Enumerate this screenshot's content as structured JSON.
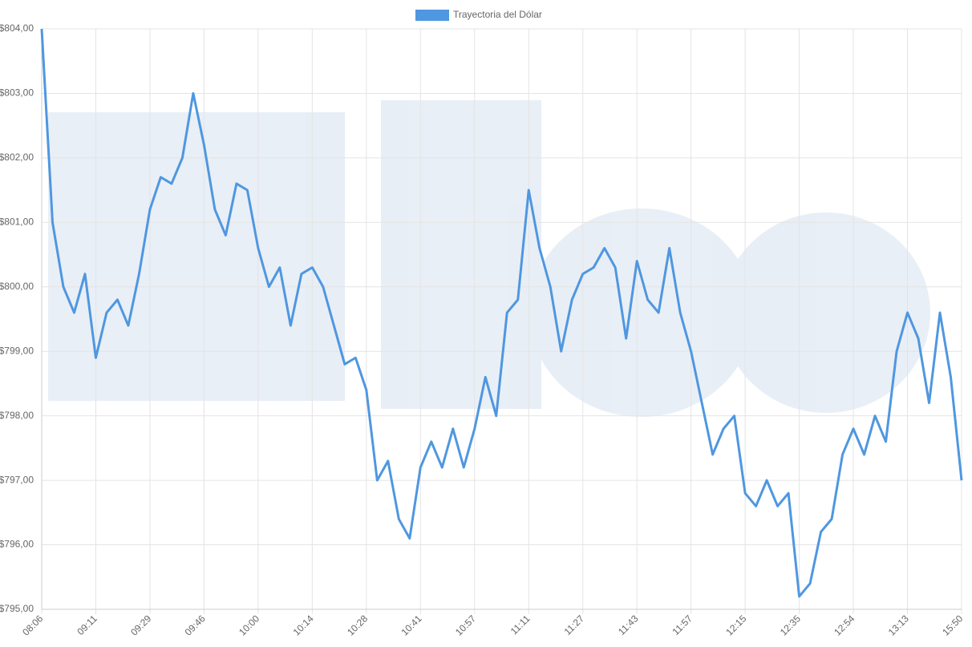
{
  "chart_data": {
    "type": "line",
    "legend": "top",
    "grid": true,
    "categories": [
      "08:06",
      null,
      null,
      null,
      null,
      "09:11",
      null,
      null,
      null,
      null,
      "09:29",
      null,
      null,
      null,
      null,
      "09:46",
      null,
      null,
      null,
      null,
      "10:00",
      null,
      null,
      null,
      null,
      "10:14",
      null,
      null,
      null,
      null,
      "10:28",
      null,
      null,
      null,
      null,
      "10:41",
      null,
      null,
      null,
      null,
      "10:57",
      null,
      null,
      null,
      null,
      "11:11",
      null,
      null,
      null,
      null,
      "11:27",
      null,
      null,
      null,
      null,
      "11:43",
      null,
      null,
      null,
      null,
      "11:57",
      null,
      null,
      null,
      null,
      "12:15",
      null,
      null,
      null,
      null,
      "12:35",
      null,
      null,
      null,
      null,
      "12:54",
      null,
      null,
      null,
      null,
      "13:13",
      null,
      null,
      null,
      null,
      "15:50"
    ],
    "series": [
      {
        "name": "Trayectoria del Dólar",
        "color": "#4f97e0",
        "values": [
          804.0,
          801.0,
          800.0,
          799.6,
          800.2,
          798.9,
          799.6,
          799.8,
          799.4,
          800.2,
          801.2,
          801.7,
          801.6,
          802.0,
          803.0,
          802.2,
          801.2,
          800.8,
          801.6,
          801.5,
          800.6,
          800.0,
          800.3,
          799.4,
          800.2,
          800.3,
          800.0,
          799.4,
          798.8,
          798.9,
          798.4,
          797.0,
          797.3,
          796.4,
          796.1,
          797.2,
          797.6,
          797.2,
          797.8,
          797.2,
          797.8,
          798.6,
          798.0,
          799.6,
          799.8,
          801.5,
          800.6,
          800.0,
          799.0,
          799.8,
          800.2,
          800.3,
          800.6,
          800.3,
          799.2,
          800.4,
          799.8,
          799.6,
          800.6,
          799.6,
          799.0,
          798.2,
          797.4,
          797.8,
          798.0,
          796.8,
          796.6,
          797.0,
          796.6,
          796.8,
          795.2,
          795.4,
          796.2,
          796.4,
          797.4,
          797.8,
          797.4,
          798.0,
          797.6,
          799.0,
          799.6,
          799.2,
          798.2,
          799.6,
          798.6,
          797.0
        ]
      }
    ],
    "ylim": [
      795,
      804
    ],
    "yticks": [
      {
        "value": 795,
        "label": "$795,00"
      },
      {
        "value": 796,
        "label": "$796,00"
      },
      {
        "value": 797,
        "label": "$797,00"
      },
      {
        "value": 798,
        "label": "$798,00"
      },
      {
        "value": 799,
        "label": "$799,00"
      },
      {
        "value": 800,
        "label": "$800,00"
      },
      {
        "value": 801,
        "label": "$801,00"
      },
      {
        "value": 802,
        "label": "$802,00"
      },
      {
        "value": 803,
        "label": "$803,00"
      },
      {
        "value": 804,
        "label": "$804,00"
      }
    ]
  }
}
